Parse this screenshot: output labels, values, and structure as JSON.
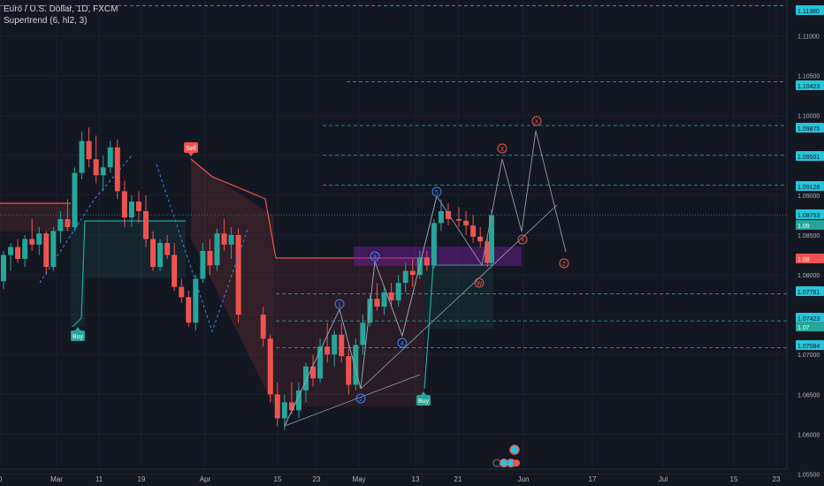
{
  "legend": {
    "symbol": "Euro / U.S. Dollar, 1D, FXCM",
    "indicator": "Supertrend (6, hl2, 3)"
  },
  "colors": {
    "background": "#131722",
    "grid": "#1e222d",
    "text": "#b2b5be",
    "bull": "#26a69a",
    "bear": "#ef5350",
    "level_line": "#26c6da",
    "wave": "#3b82f6",
    "wave_correction": "#ef5350",
    "price_highlight": "#26a69a",
    "sell_label": "#ef5350",
    "buy_label": "#26a69a",
    "zone_fill": "#7b1fa2"
  },
  "price_axis": {
    "ticks": [
      "1.11000",
      "1.10500",
      "1.10000",
      "1.09500",
      "1.09000",
      "1.08500",
      "1.08000",
      "1.07500",
      "1.07000",
      "1.06500",
      "1.06000",
      "1.05500"
    ],
    "labels": [
      {
        "text": "1.11380",
        "kind": "level"
      },
      {
        "text": "1.10423",
        "kind": "level"
      },
      {
        "text": "1.09875",
        "kind": "level"
      },
      {
        "text": "1.09501",
        "kind": "level"
      },
      {
        "text": "1.09128",
        "kind": "level"
      },
      {
        "text": "1.08753",
        "kind": "level"
      },
      {
        "text": "1.09",
        "kind": "green"
      },
      {
        "text": "1.08",
        "kind": "red"
      },
      {
        "text": "1.07761",
        "kind": "level"
      },
      {
        "text": "1.07423",
        "kind": "level"
      },
      {
        "text": "1.07",
        "kind": "green"
      },
      {
        "text": "1.07084",
        "kind": "level"
      }
    ]
  },
  "time_axis": {
    "labels": [
      "0",
      "Mar",
      "11",
      "19",
      "Apr",
      "15",
      "23",
      "May",
      "13",
      "21",
      "Jun",
      "17",
      "Jul",
      "15",
      "23"
    ]
  },
  "signals": [
    {
      "text": "Sell",
      "kind": "sell"
    },
    {
      "text": "Buy",
      "kind": "buy"
    },
    {
      "text": "Buy",
      "kind": "buy"
    }
  ],
  "wave_labels": [
    {
      "text": "1",
      "kind": "impulse"
    },
    {
      "text": "2",
      "kind": "impulse"
    },
    {
      "text": "3",
      "kind": "impulse"
    },
    {
      "text": "4",
      "kind": "impulse"
    },
    {
      "text": "5",
      "kind": "impulse"
    },
    {
      "text": "W",
      "kind": "correction"
    },
    {
      "text": "X",
      "kind": "correction"
    },
    {
      "text": "Y",
      "kind": "correction"
    },
    {
      "text": "X",
      "kind": "correction"
    },
    {
      "text": "Z",
      "kind": "correction"
    }
  ],
  "chart_data": {
    "type": "candlestick",
    "symbol": "Euro / U.S. Dollar, 1D, FXCM",
    "candles": [
      [
        1.0792,
        1.083,
        1.0782,
        1.0825
      ],
      [
        1.0825,
        1.084,
        1.0805,
        1.0835
      ],
      [
        1.0835,
        1.0845,
        1.0815,
        1.082
      ],
      [
        1.082,
        1.085,
        1.081,
        1.0845
      ],
      [
        1.0845,
        1.087,
        1.083,
        1.0838
      ],
      [
        1.0838,
        1.086,
        1.0825,
        1.0852
      ],
      [
        1.0852,
        1.0855,
        1.08,
        1.081
      ],
      [
        1.081,
        1.086,
        1.0805,
        1.0855
      ],
      [
        1.0855,
        1.088,
        1.084,
        1.087
      ],
      [
        1.087,
        1.0895,
        1.0855,
        1.086
      ],
      [
        1.086,
        1.0935,
        1.0855,
        1.0928
      ],
      [
        1.0928,
        1.098,
        1.092,
        1.0968
      ],
      [
        1.0968,
        1.0985,
        1.0935,
        1.0945
      ],
      [
        1.0945,
        1.0975,
        1.0915,
        1.0925
      ],
      [
        1.0925,
        1.095,
        1.0905,
        1.0935
      ],
      [
        1.0935,
        1.0968,
        1.0928,
        1.096
      ],
      [
        1.096,
        1.097,
        1.0895,
        1.0905
      ],
      [
        1.0905,
        1.0918,
        1.086,
        1.0872
      ],
      [
        1.0872,
        1.09,
        1.086,
        1.0892
      ],
      [
        1.0892,
        1.0905,
        1.0865,
        1.088
      ],
      [
        1.088,
        1.09,
        1.0835,
        1.0845
      ],
      [
        1.0845,
        1.0855,
        1.0805,
        1.081
      ],
      [
        1.081,
        1.0845,
        1.0805,
        1.084
      ],
      [
        1.084,
        1.085,
        1.082,
        1.0825
      ],
      [
        1.0825,
        1.084,
        1.078,
        1.0785
      ],
      [
        1.0785,
        1.0795,
        1.0765,
        1.0772
      ],
      [
        1.0772,
        1.078,
        1.0735,
        1.074
      ],
      [
        1.074,
        1.08,
        1.073,
        1.0795
      ],
      [
        1.0795,
        1.084,
        1.079,
        1.083
      ],
      [
        1.083,
        1.0845,
        1.08,
        1.0812
      ],
      [
        1.0812,
        1.0858,
        1.0805,
        1.0852
      ],
      [
        1.0852,
        1.087,
        1.083,
        1.0838
      ],
      [
        1.0838,
        1.086,
        1.082,
        1.085
      ],
      [
        1.085,
        1.0858,
        1.074,
        1.075
      ],
      [
        1.075,
        1.076,
        1.071,
        1.072
      ],
      [
        1.072,
        1.0725,
        1.064,
        1.065
      ],
      [
        1.065,
        1.0665,
        1.061,
        1.062
      ],
      [
        1.062,
        1.065,
        1.0605,
        1.064
      ],
      [
        1.064,
        1.0665,
        1.0625,
        1.063
      ],
      [
        1.063,
        1.0665,
        1.062,
        1.0655
      ],
      [
        1.0655,
        1.069,
        1.064,
        1.0685
      ],
      [
        1.0685,
        1.07,
        1.066,
        1.067
      ],
      [
        1.067,
        1.072,
        1.0665,
        1.071
      ],
      [
        1.071,
        1.074,
        1.069,
        1.07
      ],
      [
        1.07,
        1.073,
        1.0685,
        1.0725
      ],
      [
        1.0725,
        1.074,
        1.069,
        1.0698
      ],
      [
        1.0698,
        1.0715,
        1.065,
        1.0662
      ],
      [
        1.0662,
        1.072,
        1.0655,
        1.0712
      ],
      [
        1.0712,
        1.075,
        1.07,
        1.074
      ],
      [
        1.074,
        1.0775,
        1.0735,
        1.077
      ],
      [
        1.077,
        1.079,
        1.0755,
        1.076
      ],
      [
        1.076,
        1.0785,
        1.075,
        1.0778
      ],
      [
        1.0778,
        1.079,
        1.076,
        1.0768
      ],
      [
        1.0768,
        1.08,
        1.076,
        1.079
      ],
      [
        1.079,
        1.0815,
        1.0778,
        1.0805
      ],
      [
        1.0805,
        1.082,
        1.0785,
        1.08
      ],
      [
        1.08,
        1.083,
        1.0795,
        1.0822
      ],
      [
        1.0822,
        1.083,
        1.0805,
        1.0812
      ],
      [
        1.0812,
        1.087,
        1.0808,
        1.0865
      ],
      [
        1.0865,
        1.0895,
        1.0855,
        1.088
      ],
      [
        1.088,
        1.089,
        1.0862,
        1.087
      ],
      [
        1.087,
        1.0885,
        1.086,
        1.0868
      ],
      [
        1.0868,
        1.088,
        1.085,
        1.0862
      ],
      [
        1.0862,
        1.0875,
        1.084,
        1.0848
      ],
      [
        1.0848,
        1.086,
        1.0835,
        1.0842
      ],
      [
        1.0842,
        1.085,
        1.081,
        1.0815
      ],
      [
        1.0815,
        1.085,
        1.0812,
        1.0845
      ],
      [
        1.0845,
        1.0865,
        1.0838,
        1.086
      ],
      [
        1.086,
        1.0882,
        1.0852,
        1.0875
      ]
    ],
    "horizontal_levels": [
      1.1138,
      1.10423,
      1.09875,
      1.09501,
      1.09128,
      1.08753,
      1.07761,
      1.07423,
      1.07084
    ],
    "y_range": [
      1.0535,
      1.1145
    ],
    "x_labels": [
      "0",
      "Mar",
      "11",
      "19",
      "Apr",
      "15",
      "23",
      "May",
      "13",
      "21",
      "Jun",
      "17",
      "Jul",
      "15",
      "23"
    ]
  }
}
